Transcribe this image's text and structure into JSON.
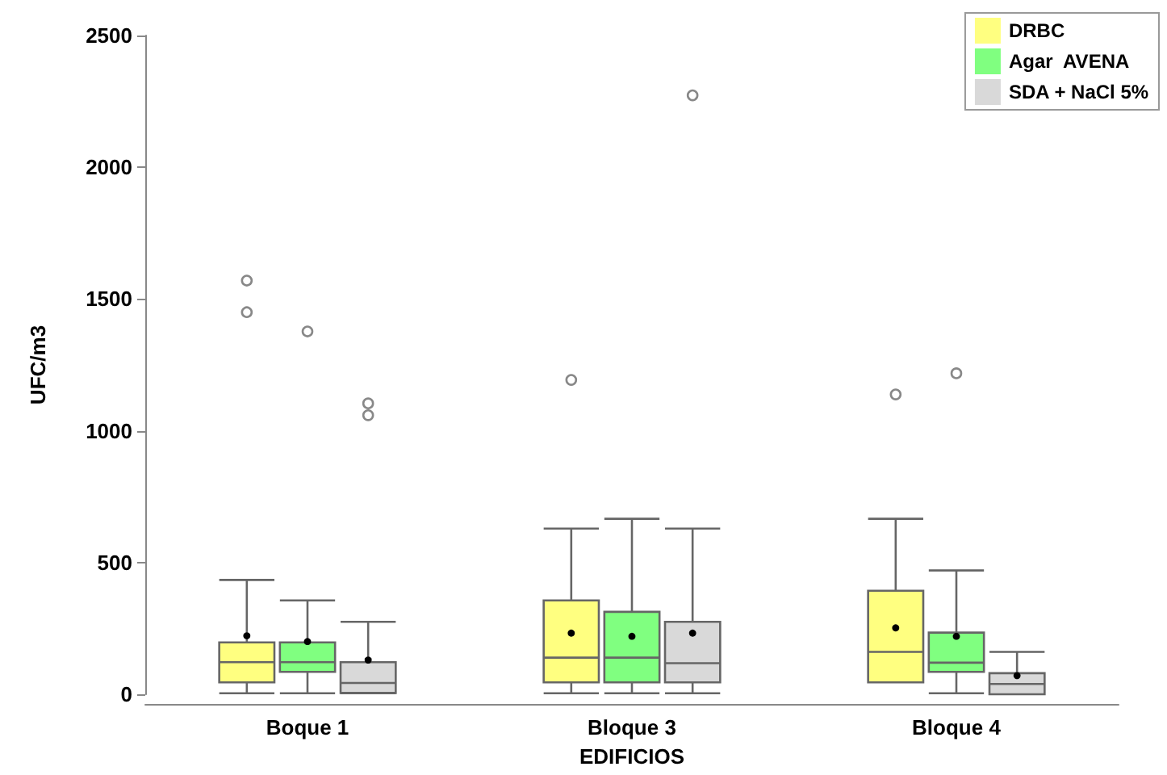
{
  "chart_data": {
    "type": "box",
    "xlabel": "EDIFICIOS",
    "ylabel": "UFC/m3",
    "categories": [
      "Boque 1",
      "Bloque 3",
      "Bloque 4"
    ],
    "ylim": [
      0,
      2500
    ],
    "yticks": [
      0,
      500,
      1000,
      1500,
      2000,
      2500
    ],
    "grid": false,
    "legend": "top right",
    "series": [
      {
        "name": "DRBC",
        "color": "#ffff80",
        "boxes": [
          {
            "low": 0,
            "q1": 45,
            "median": 122,
            "q3": 197,
            "high": 434,
            "mean": 222,
            "outliers": [
              1570,
              1450
            ]
          },
          {
            "low": 0,
            "q1": 45,
            "median": 139,
            "q3": 356,
            "high": 629,
            "mean": 232,
            "outliers": [
              1193
            ]
          },
          {
            "low": 45,
            "q1": 45,
            "median": 161,
            "q3": 393,
            "high": 666,
            "mean": 252,
            "outliers": [
              1138
            ]
          }
        ]
      },
      {
        "name": "Agar  AVENA",
        "color": "#80ff80",
        "boxes": [
          {
            "low": 0,
            "q1": 85,
            "median": 122,
            "q3": 197,
            "high": 356,
            "mean": 200,
            "outliers": [
              1377
            ]
          },
          {
            "low": 0,
            "q1": 45,
            "median": 139,
            "q3": 313,
            "high": 666,
            "mean": 220
          },
          {
            "low": 0,
            "q1": 85,
            "median": 120,
            "q3": 234,
            "high": 470,
            "mean": 220,
            "outliers": [
              1218
            ]
          }
        ]
      },
      {
        "name": "SDA + NaCl 5%",
        "color": "#d9d9d9",
        "boxes": [
          {
            "low": 0,
            "q1": 5,
            "median": 43,
            "q3": 122,
            "high": 275,
            "mean": 130,
            "outliers": [
              1104,
              1059
            ]
          },
          {
            "low": 0,
            "q1": 45,
            "median": 118,
            "q3": 275,
            "high": 629,
            "mean": 232,
            "outliers": [
              2273
            ]
          },
          {
            "low": 0,
            "q1": 0,
            "median": 39,
            "q3": 80,
            "high": 161,
            "mean": 71
          }
        ]
      }
    ]
  }
}
